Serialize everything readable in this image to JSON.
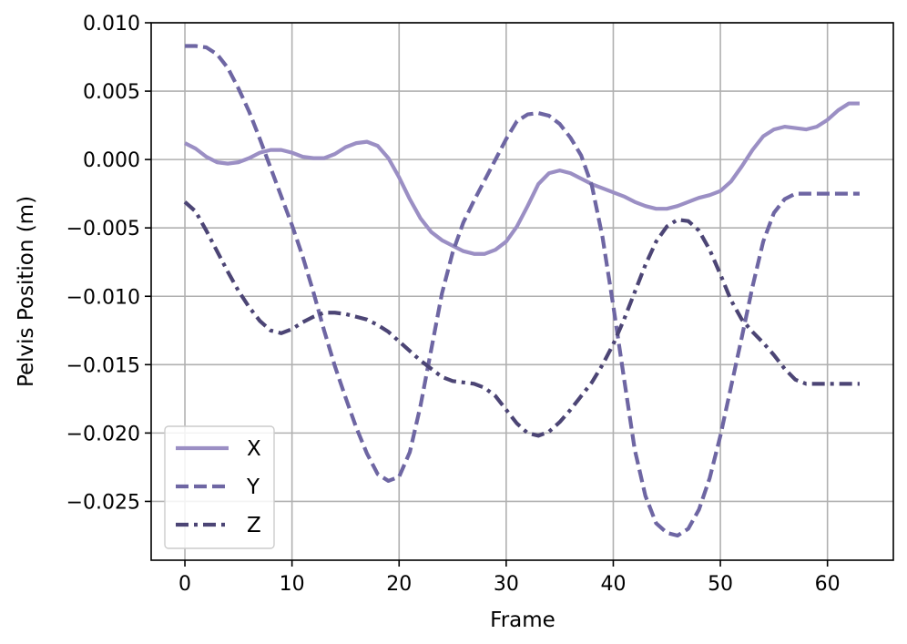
{
  "chart_data": {
    "type": "line",
    "title": "",
    "xlabel": "Frame",
    "ylabel": "Pelvis Position (m)",
    "xlim": [
      -3.15,
      66.15
    ],
    "ylim": [
      -0.0293,
      0.01
    ],
    "x_ticks": [
      0,
      10,
      20,
      30,
      40,
      50,
      60
    ],
    "x_tick_labels": [
      "0",
      "10",
      "20",
      "30",
      "40",
      "50",
      "60"
    ],
    "y_ticks": [
      0.01,
      0.005,
      0.0,
      -0.005,
      -0.01,
      -0.015,
      -0.02,
      -0.025
    ],
    "y_tick_labels": [
      "0.010",
      "0.005",
      "0.000",
      "−0.005",
      "−0.010",
      "−0.015",
      "−0.020",
      "−0.025"
    ],
    "grid": true,
    "legend_position": "lower-left",
    "x": [
      0,
      1,
      2,
      3,
      4,
      5,
      6,
      7,
      8,
      9,
      10,
      11,
      12,
      13,
      14,
      15,
      16,
      17,
      18,
      19,
      20,
      21,
      22,
      23,
      24,
      25,
      26,
      27,
      28,
      29,
      30,
      31,
      32,
      33,
      34,
      35,
      36,
      37,
      38,
      39,
      40,
      41,
      42,
      43,
      44,
      45,
      46,
      47,
      48,
      49,
      50,
      51,
      52,
      53,
      54,
      55,
      56,
      57,
      58,
      59,
      60,
      61,
      62,
      63
    ],
    "series": [
      {
        "name": "X",
        "color": "#9b8fc4",
        "dash": "solid",
        "values": [
          0.0012,
          0.0008,
          0.0002,
          -0.0002,
          -0.0003,
          -0.0002,
          0.0001,
          0.0005,
          0.0007,
          0.0007,
          0.0005,
          0.0002,
          0.0001,
          0.0001,
          0.0004,
          0.0009,
          0.0012,
          0.0013,
          0.001,
          0.0001,
          -0.0013,
          -0.0029,
          -0.0043,
          -0.0053,
          -0.0059,
          -0.0063,
          -0.0067,
          -0.0069,
          -0.0069,
          -0.0066,
          -0.006,
          -0.0049,
          -0.0034,
          -0.0018,
          -0.001,
          -0.0008,
          -0.001,
          -0.0014,
          -0.0018,
          -0.0021,
          -0.0024,
          -0.0027,
          -0.0031,
          -0.0034,
          -0.0036,
          -0.0036,
          -0.0034,
          -0.0031,
          -0.0028,
          -0.0026,
          -0.0023,
          -0.0016,
          -0.0005,
          0.0007,
          0.0017,
          0.0022,
          0.0024,
          0.0023,
          0.0022,
          0.0024,
          0.0029,
          0.0036,
          0.0041,
          0.0041
        ]
      },
      {
        "name": "Y",
        "color": "#6e66a3",
        "dash": "dashed",
        "values": [
          0.0083,
          0.0083,
          0.0082,
          0.0077,
          0.0067,
          0.0052,
          0.0035,
          0.0015,
          -0.0006,
          -0.0027,
          -0.0048,
          -0.0071,
          -0.0097,
          -0.0125,
          -0.0151,
          -0.0174,
          -0.0196,
          -0.0215,
          -0.023,
          -0.0235,
          -0.0232,
          -0.0214,
          -0.018,
          -0.0139,
          -0.0098,
          -0.0068,
          -0.0046,
          -0.003,
          -0.0015,
          0.0,
          0.0015,
          0.0028,
          0.0033,
          0.0034,
          0.0032,
          0.0026,
          0.0016,
          0.0003,
          -0.0019,
          -0.0057,
          -0.0107,
          -0.016,
          -0.0212,
          -0.0246,
          -0.0266,
          -0.0273,
          -0.0275,
          -0.027,
          -0.0256,
          -0.0233,
          -0.0202,
          -0.0166,
          -0.013,
          -0.0093,
          -0.006,
          -0.0039,
          -0.0029,
          -0.0025,
          -0.0025,
          -0.0025,
          -0.0025,
          -0.0025,
          -0.0025,
          -0.0025
        ]
      },
      {
        "name": "Z",
        "color": "#4c4575",
        "dash": "dash-dot",
        "values": [
          -0.0031,
          -0.0038,
          -0.0052,
          -0.0067,
          -0.0082,
          -0.0096,
          -0.0108,
          -0.0118,
          -0.0125,
          -0.0127,
          -0.0124,
          -0.0119,
          -0.0115,
          -0.0112,
          -0.0112,
          -0.0113,
          -0.0115,
          -0.0117,
          -0.0121,
          -0.0126,
          -0.0133,
          -0.014,
          -0.0147,
          -0.0153,
          -0.0159,
          -0.0162,
          -0.0163,
          -0.0164,
          -0.0167,
          -0.0173,
          -0.0183,
          -0.0193,
          -0.02,
          -0.0202,
          -0.0199,
          -0.0192,
          -0.0183,
          -0.0173,
          -0.0163,
          -0.015,
          -0.0135,
          -0.0117,
          -0.0097,
          -0.0077,
          -0.006,
          -0.0049,
          -0.0044,
          -0.0045,
          -0.0052,
          -0.0066,
          -0.0084,
          -0.0103,
          -0.0117,
          -0.0126,
          -0.0134,
          -0.0143,
          -0.0153,
          -0.0161,
          -0.0164,
          -0.0164,
          -0.0164,
          -0.0164,
          -0.0164,
          -0.0164
        ]
      }
    ]
  }
}
